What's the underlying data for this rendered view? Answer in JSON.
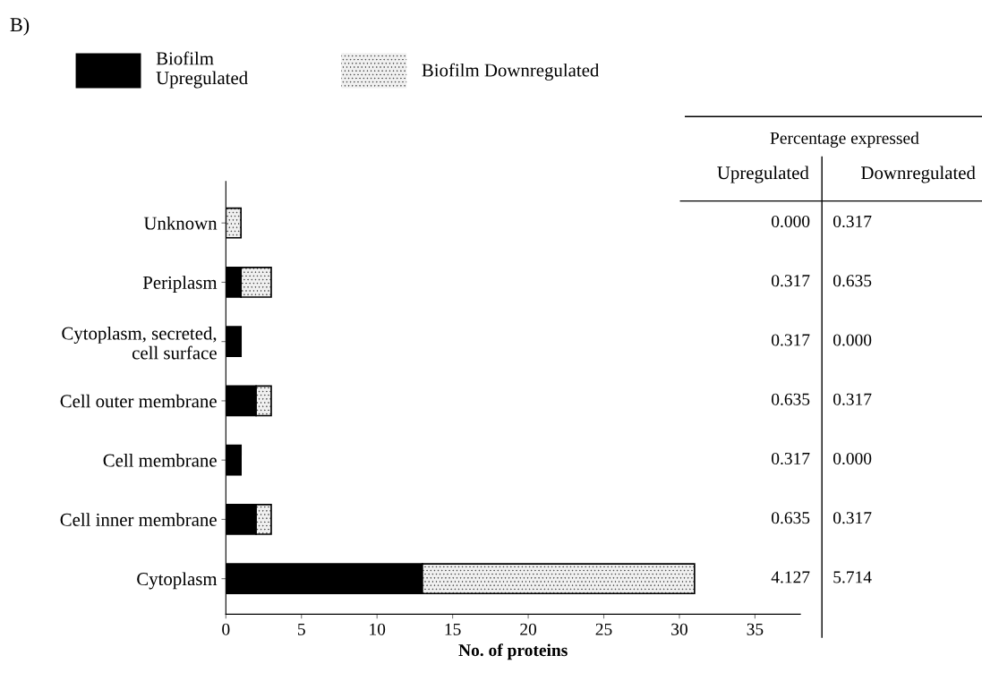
{
  "chart_data": {
    "type": "bar",
    "orientation": "horizontal",
    "stacked": true,
    "xlabel": "No. of proteins",
    "categories": [
      "Unknown",
      "Periplasm",
      "Cytoplasm, secreted,\ncell surface",
      "Cell outer membrane",
      "Cell membrane",
      "Cell inner membrane",
      "Cytoplasm"
    ],
    "series": [
      {
        "name": "Biofilm\nUpregulated",
        "color": "#000000",
        "values": [
          0,
          1,
          1,
          2,
          1,
          2,
          13
        ]
      },
      {
        "name": "Biofilm Downregulated",
        "color": "#f0f0f0",
        "values": [
          1,
          2,
          0,
          1,
          0,
          1,
          18
        ]
      }
    ],
    "xlim": [
      0,
      38
    ],
    "xticks": [
      0,
      5,
      10,
      15,
      20,
      25,
      30,
      35
    ],
    "legend": "top left",
    "grid": false,
    "annotations": [
      "B)",
      "Percentage expressed",
      "Upregulated",
      "Downregulated",
      "0.000",
      "0.317",
      "0.317",
      "0.635",
      "0.317",
      "0.000",
      "0.635",
      "0.317",
      "0.317",
      "0.000",
      "0.635",
      "0.317",
      "4.127",
      "5.714"
    ]
  }
}
